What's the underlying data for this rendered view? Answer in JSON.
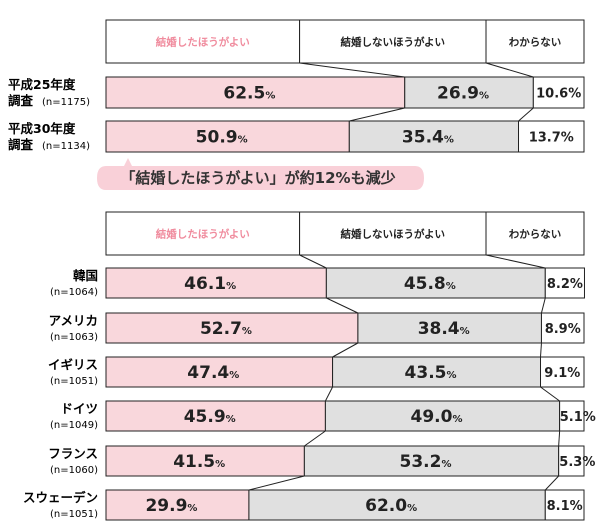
{
  "colors": {
    "should": "#f9d7dc",
    "should_header": "#f08c9e",
    "should_not": "#e0e0e0",
    "dont_know": "#ffffff",
    "border": "#222222",
    "callout_bg": "#f9d0d8",
    "callout_text": "#333333"
  },
  "callout": {
    "text": "「結婚したほうがよい」が約12%も減少"
  },
  "chart_data": [
    {
      "type": "bar",
      "stacked": "percent",
      "orientation": "horizontal",
      "legend": [
        "結婚したほうがよい",
        "結婚しないほうがよい",
        "わからない"
      ],
      "categories": [
        {
          "name": "平成25年度",
          "name2": "調査",
          "n": "(n=1175)"
        },
        {
          "name": "平成30年度",
          "name2": "調査",
          "n": "(n=1134)"
        }
      ],
      "series": [
        {
          "name": "結婚したほうがよい",
          "values": [
            62.5,
            50.9
          ],
          "labels": [
            "62.5",
            "50.9"
          ]
        },
        {
          "name": "結婚しないほうがよい",
          "values": [
            26.9,
            35.4
          ],
          "labels": [
            "26.9",
            "35.4"
          ]
        },
        {
          "name": "わからない",
          "values": [
            10.6,
            13.7
          ],
          "labels": [
            "10.6",
            "13.7"
          ]
        }
      ]
    },
    {
      "type": "bar",
      "stacked": "percent",
      "orientation": "horizontal",
      "legend": [
        "結婚したほうがよい",
        "結婚しないほうがよい",
        "わからない"
      ],
      "categories": [
        {
          "name": "韓国",
          "n": "(n=1064)"
        },
        {
          "name": "アメリカ",
          "n": "(n=1063)"
        },
        {
          "name": "イギリス",
          "n": "(n=1051)"
        },
        {
          "name": "ドイツ",
          "n": "(n=1049)"
        },
        {
          "name": "フランス",
          "n": "(n=1060)"
        },
        {
          "name": "スウェーデン",
          "n": "(n=1051)"
        }
      ],
      "series": [
        {
          "name": "結婚したほうがよい",
          "values": [
            46.1,
            52.7,
            47.4,
            45.9,
            41.5,
            29.9
          ],
          "labels": [
            "46.1",
            "52.7",
            "47.4",
            "45.9",
            "41.5",
            "29.9"
          ]
        },
        {
          "name": "結婚しないほうがよい",
          "values": [
            45.8,
            38.4,
            43.5,
            49.0,
            53.2,
            62.0
          ],
          "labels": [
            "45.8",
            "38.4",
            "43.5",
            "49.0",
            "53.2",
            "62.0"
          ]
        },
        {
          "name": "わからない",
          "values": [
            8.2,
            8.9,
            9.1,
            5.1,
            5.3,
            8.1
          ],
          "labels": [
            "8.2",
            "8.9",
            "9.1",
            "5.1",
            "5.3",
            "8.1"
          ]
        }
      ]
    }
  ]
}
